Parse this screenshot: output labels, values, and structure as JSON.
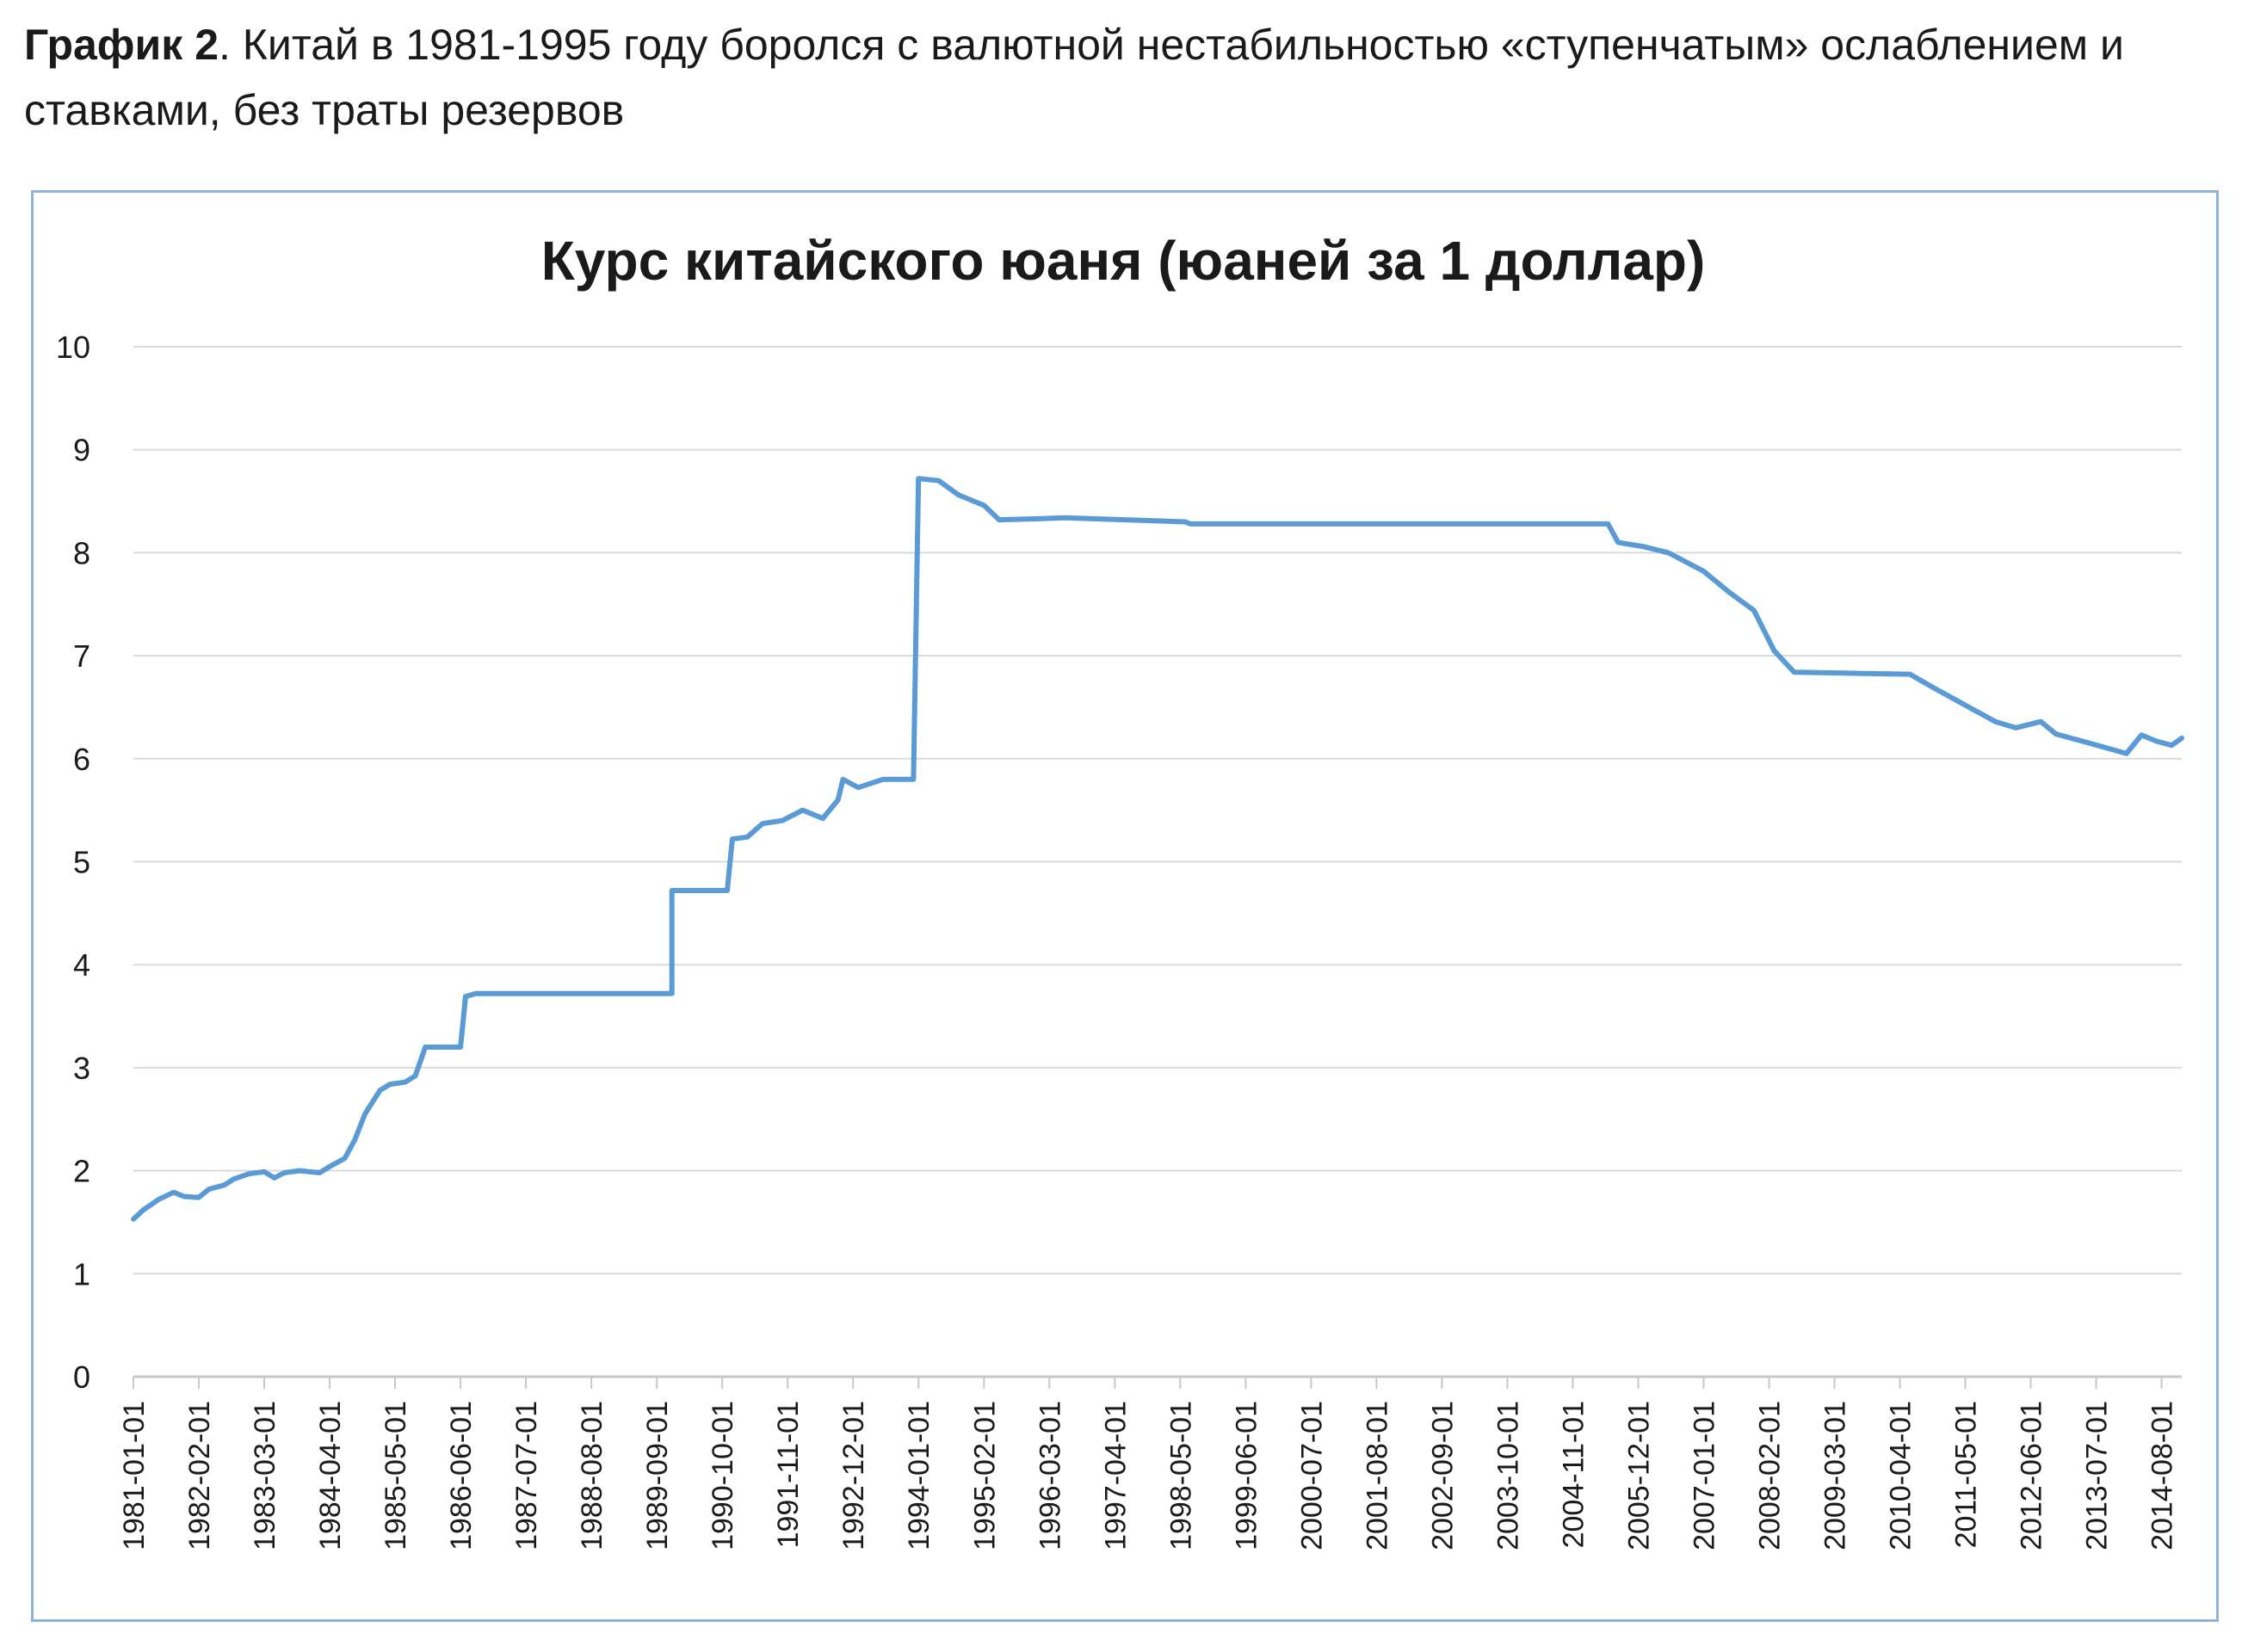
{
  "caption": {
    "bold": "График 2",
    "text": ". Китай в 1981-1995 году боролся с валютной нестабильностью «ступенчатым» ослаблением и ставками, без траты резервов"
  },
  "colors": {
    "line": "#5b9bd5",
    "grid": "#d9d9d9",
    "frame": "#8fb3d9"
  },
  "chart_data": {
    "type": "line",
    "title": "Курс китайского юаня (юаней за 1 доллар)",
    "xlabel": "",
    "ylabel": "",
    "ylim": [
      0,
      10
    ],
    "yticks": [
      "0",
      "1",
      "2",
      "3",
      "4",
      "5",
      "6",
      "7",
      "8",
      "9",
      "10"
    ],
    "xlim": [
      "1981-01",
      "2014-12"
    ],
    "xticks": [
      "1981-01-01",
      "1982-02-01",
      "1983-03-01",
      "1984-04-01",
      "1985-05-01",
      "1986-06-01",
      "1987-07-01",
      "1988-08-01",
      "1989-09-01",
      "1990-10-01",
      "1991-11-01",
      "1992-12-01",
      "1994-01-01",
      "1995-02-01",
      "1996-03-01",
      "1997-04-01",
      "1998-05-01",
      "1999-06-01",
      "2000-07-01",
      "2001-08-01",
      "2002-09-01",
      "2003-10-01",
      "2004-11-01",
      "2005-12-01",
      "2007-01-01",
      "2008-02-01",
      "2009-03-01",
      "2010-04-01",
      "2011-05-01",
      "2012-06-01",
      "2013-07-01",
      "2014-08-01"
    ],
    "grid": true,
    "legend": "none",
    "series": [
      {
        "name": "",
        "points": [
          [
            "1981-01",
            1.53
          ],
          [
            "1981-03",
            1.62
          ],
          [
            "1981-06",
            1.72
          ],
          [
            "1981-09",
            1.79
          ],
          [
            "1981-11",
            1.75
          ],
          [
            "1982-02",
            1.74
          ],
          [
            "1982-04",
            1.82
          ],
          [
            "1982-07",
            1.86
          ],
          [
            "1982-09",
            1.92
          ],
          [
            "1982-12",
            1.97
          ],
          [
            "1983-03",
            1.99
          ],
          [
            "1983-05",
            1.93
          ],
          [
            "1983-07",
            1.98
          ],
          [
            "1983-10",
            2.0
          ],
          [
            "1984-02",
            1.98
          ],
          [
            "1984-04",
            2.04
          ],
          [
            "1984-07",
            2.12
          ],
          [
            "1984-09",
            2.3
          ],
          [
            "1984-11",
            2.55
          ],
          [
            "1985-02",
            2.78
          ],
          [
            "1985-04",
            2.84
          ],
          [
            "1985-07",
            2.86
          ],
          [
            "1985-09",
            2.92
          ],
          [
            "1985-11",
            3.2
          ],
          [
            "1986-03",
            3.2
          ],
          [
            "1986-06",
            3.2
          ],
          [
            "1986-07",
            3.69
          ],
          [
            "1986-09",
            3.72
          ],
          [
            "1989-12",
            3.72
          ],
          [
            "1989-12",
            4.72
          ],
          [
            "1990-11",
            4.72
          ],
          [
            "1990-12",
            5.22
          ],
          [
            "1991-03",
            5.24
          ],
          [
            "1991-06",
            5.37
          ],
          [
            "1991-10",
            5.4
          ],
          [
            "1992-02",
            5.5
          ],
          [
            "1992-06",
            5.42
          ],
          [
            "1992-09",
            5.6
          ],
          [
            "1992-10",
            5.8
          ],
          [
            "1993-01",
            5.72
          ],
          [
            "1993-06",
            5.8
          ],
          [
            "1993-12",
            5.8
          ],
          [
            "1994-01",
            8.72
          ],
          [
            "1994-05",
            8.7
          ],
          [
            "1994-09",
            8.56
          ],
          [
            "1995-02",
            8.46
          ],
          [
            "1995-05",
            8.32
          ],
          [
            "1996-01",
            8.33
          ],
          [
            "1996-06",
            8.34
          ],
          [
            "1997-06",
            8.32
          ],
          [
            "1998-06",
            8.3
          ],
          [
            "1998-07",
            8.28
          ],
          [
            "2005-06",
            8.28
          ],
          [
            "2005-08",
            8.1
          ],
          [
            "2006-01",
            8.06
          ],
          [
            "2006-06",
            8.0
          ],
          [
            "2007-01",
            7.82
          ],
          [
            "2007-06",
            7.62
          ],
          [
            "2007-11",
            7.44
          ],
          [
            "2008-03",
            7.05
          ],
          [
            "2008-07",
            6.84
          ],
          [
            "2009-06",
            6.83
          ],
          [
            "2010-06",
            6.82
          ],
          [
            "2010-11",
            6.68
          ],
          [
            "2011-05",
            6.52
          ],
          [
            "2011-11",
            6.36
          ],
          [
            "2012-03",
            6.3
          ],
          [
            "2012-08",
            6.36
          ],
          [
            "2012-11",
            6.24
          ],
          [
            "2013-05",
            6.16
          ],
          [
            "2014-01",
            6.05
          ],
          [
            "2014-04",
            6.23
          ],
          [
            "2014-07",
            6.17
          ],
          [
            "2014-10",
            6.13
          ],
          [
            "2014-12",
            6.2
          ]
        ]
      }
    ]
  }
}
